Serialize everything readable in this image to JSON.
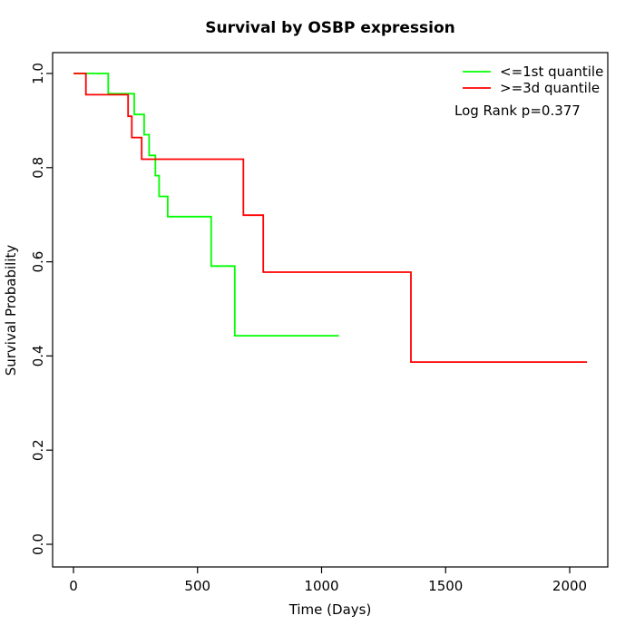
{
  "title": "Survival by OSBP expression",
  "axes": {
    "x": {
      "label": "Time (Days)",
      "ticks": [
        0,
        500,
        1000,
        1500,
        2000
      ],
      "range": [
        0,
        2000
      ]
    },
    "y": {
      "label": "Survival Probability",
      "ticks": [
        "0.0",
        "0.2",
        "0.4",
        "0.6",
        "0.8",
        "1.0"
      ],
      "range": [
        0,
        1
      ]
    }
  },
  "legend": {
    "items": [
      {
        "label": "<=1st quantile",
        "color": "#00ff00"
      },
      {
        "label": ">=3d quantile",
        "color": "#ff0000"
      }
    ],
    "note": "Log Rank p=0.377",
    "position": "top-right"
  },
  "chart_data": {
    "type": "line",
    "subtype": "kaplan-meier-step",
    "title": "Survival by OSBP expression",
    "xlabel": "Time (Days)",
    "ylabel": "Survival Probability",
    "xlim": [
      0,
      2070
    ],
    "ylim": [
      0,
      1
    ],
    "grid": false,
    "legend_position": "top-right",
    "annotation": "Log Rank p=0.377",
    "series": [
      {
        "name": "<=1st quantile",
        "color": "#00ff00",
        "points": [
          [
            0,
            1.0
          ],
          [
            140,
            1.0
          ],
          [
            140,
            0.957
          ],
          [
            245,
            0.957
          ],
          [
            245,
            0.913
          ],
          [
            285,
            0.913
          ],
          [
            285,
            0.87
          ],
          [
            305,
            0.87
          ],
          [
            305,
            0.826
          ],
          [
            330,
            0.826
          ],
          [
            330,
            0.783
          ],
          [
            345,
            0.783
          ],
          [
            345,
            0.739
          ],
          [
            380,
            0.739
          ],
          [
            380,
            0.696
          ],
          [
            555,
            0.696
          ],
          [
            555,
            0.591
          ],
          [
            650,
            0.591
          ],
          [
            650,
            0.443
          ],
          [
            1070,
            0.443
          ]
        ]
      },
      {
        "name": ">=3d quantile",
        "color": "#ff0000",
        "points": [
          [
            0,
            1.0
          ],
          [
            50,
            1.0
          ],
          [
            50,
            0.955
          ],
          [
            220,
            0.955
          ],
          [
            220,
            0.909
          ],
          [
            235,
            0.909
          ],
          [
            235,
            0.864
          ],
          [
            275,
            0.864
          ],
          [
            275,
            0.818
          ],
          [
            685,
            0.818
          ],
          [
            685,
            0.699
          ],
          [
            765,
            0.699
          ],
          [
            765,
            0.578
          ],
          [
            1360,
            0.578
          ],
          [
            1360,
            0.387
          ],
          [
            2070,
            0.387
          ]
        ]
      }
    ]
  }
}
